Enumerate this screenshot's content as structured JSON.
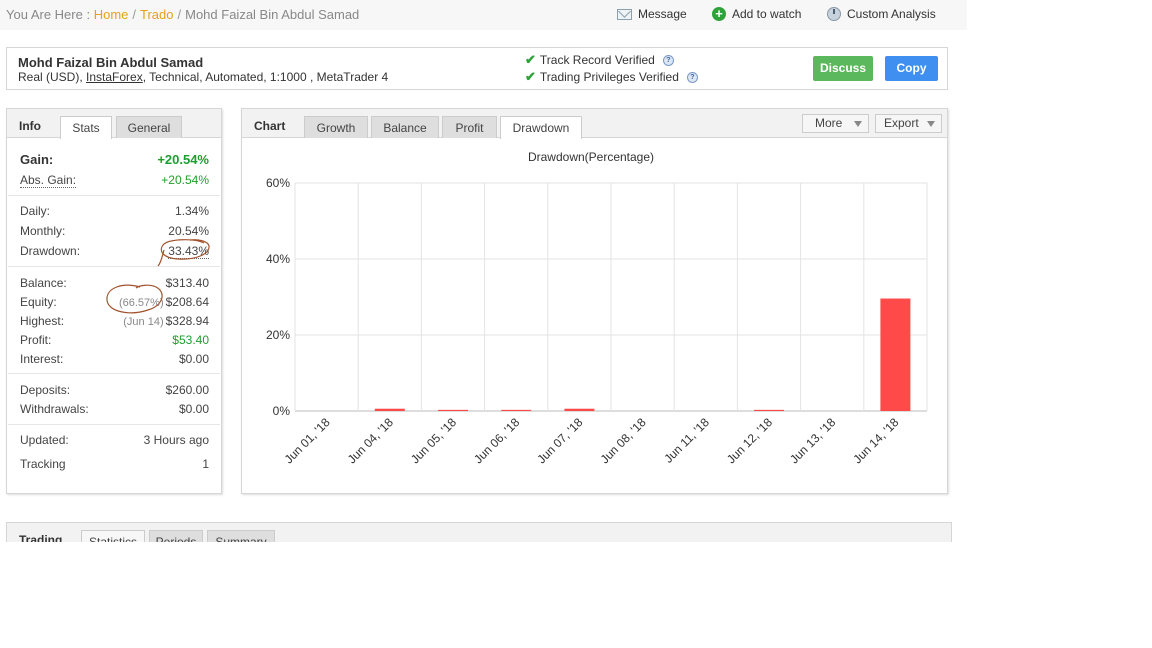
{
  "breadcrumb": {
    "prefix": "You Are Here :",
    "home": "Home",
    "trado": "Trado",
    "current": "Mohd Faizal Bin Abdul Samad"
  },
  "top_actions": {
    "message": "Message",
    "add_to_watch": "Add to watch",
    "custom_analysis": "Custom Analysis"
  },
  "header": {
    "name": "Mohd Faizal Bin Abdul Samad",
    "account_prefix": "Real (USD),",
    "broker": "InstaForex",
    "account_suffix": ", Technical, Automated, 1:1000 , MetaTrader 4",
    "track_record": "Track Record Verified",
    "trading_privileges": "Trading Privileges Verified",
    "discuss_label": "Discuss",
    "copy_label": "Copy",
    "help_glyph": "?"
  },
  "info_panel": {
    "title": "Info",
    "tabs": [
      "Stats",
      "General"
    ],
    "gain": {
      "label": "Gain:",
      "value": "+20.54%"
    },
    "abs_gain": {
      "label": "Abs. Gain:",
      "value": "+20.54%"
    },
    "daily": {
      "label": "Daily:",
      "value": "1.34%"
    },
    "monthly": {
      "label": "Monthly:",
      "value": "20.54%"
    },
    "drawdown": {
      "label": "Drawdown:",
      "value": "33.43%"
    },
    "balance": {
      "label": "Balance:",
      "value": "$313.40"
    },
    "equity": {
      "label": "Equity:",
      "percent": "(66.57%)",
      "value": "$208.64"
    },
    "highest": {
      "label": "Highest:",
      "date": "(Jun 14)",
      "value": "$328.94"
    },
    "profit": {
      "label": "Profit:",
      "value": "$53.40"
    },
    "interest": {
      "label": "Interest:",
      "value": "$0.00"
    },
    "deposits": {
      "label": "Deposits:",
      "value": "$260.00"
    },
    "withdrawals": {
      "label": "Withdrawals:",
      "value": "$0.00"
    },
    "updated": {
      "label": "Updated:",
      "value": "3 Hours ago"
    },
    "tracking": {
      "label": "Tracking",
      "value": "1"
    }
  },
  "chart_panel": {
    "title": "Chart",
    "tabs": [
      "Growth",
      "Balance",
      "Profit",
      "Drawdown"
    ],
    "active_tab": "Drawdown",
    "more_label": "More",
    "export_label": "Export"
  },
  "bottom_panel": {
    "title": "Trading",
    "tabs": [
      "Statistics",
      "Periods",
      "Summary"
    ]
  },
  "colors": {
    "accent_orange": "#e6a117",
    "gain_green": "#1e9e2e",
    "discuss_green": "#5cb85c",
    "copy_blue": "#3f8ff0",
    "bar_red": "#ff4a4a",
    "annotation_brown": "#a0522d"
  },
  "chart_data": {
    "type": "bar",
    "title": "Drawdown(Percentage)",
    "categories": [
      "Jun 01, '18",
      "Jun 04, '18",
      "Jun 05, '18",
      "Jun 06, '18",
      "Jun 07, '18",
      "Jun 08, '18",
      "Jun 11, '18",
      "Jun 12, '18",
      "Jun 13, '18",
      "Jun 14, '18"
    ],
    "values": [
      0,
      0.6,
      0.3,
      0.3,
      0.6,
      0,
      0,
      0.3,
      0,
      29.6
    ],
    "ylim": [
      0,
      60
    ],
    "yticks": [
      0,
      20,
      40,
      60
    ],
    "ytick_labels": [
      "0%",
      "20%",
      "40%",
      "60%"
    ],
    "xlabel": "",
    "ylabel": "",
    "grid": true,
    "legend": "none"
  }
}
